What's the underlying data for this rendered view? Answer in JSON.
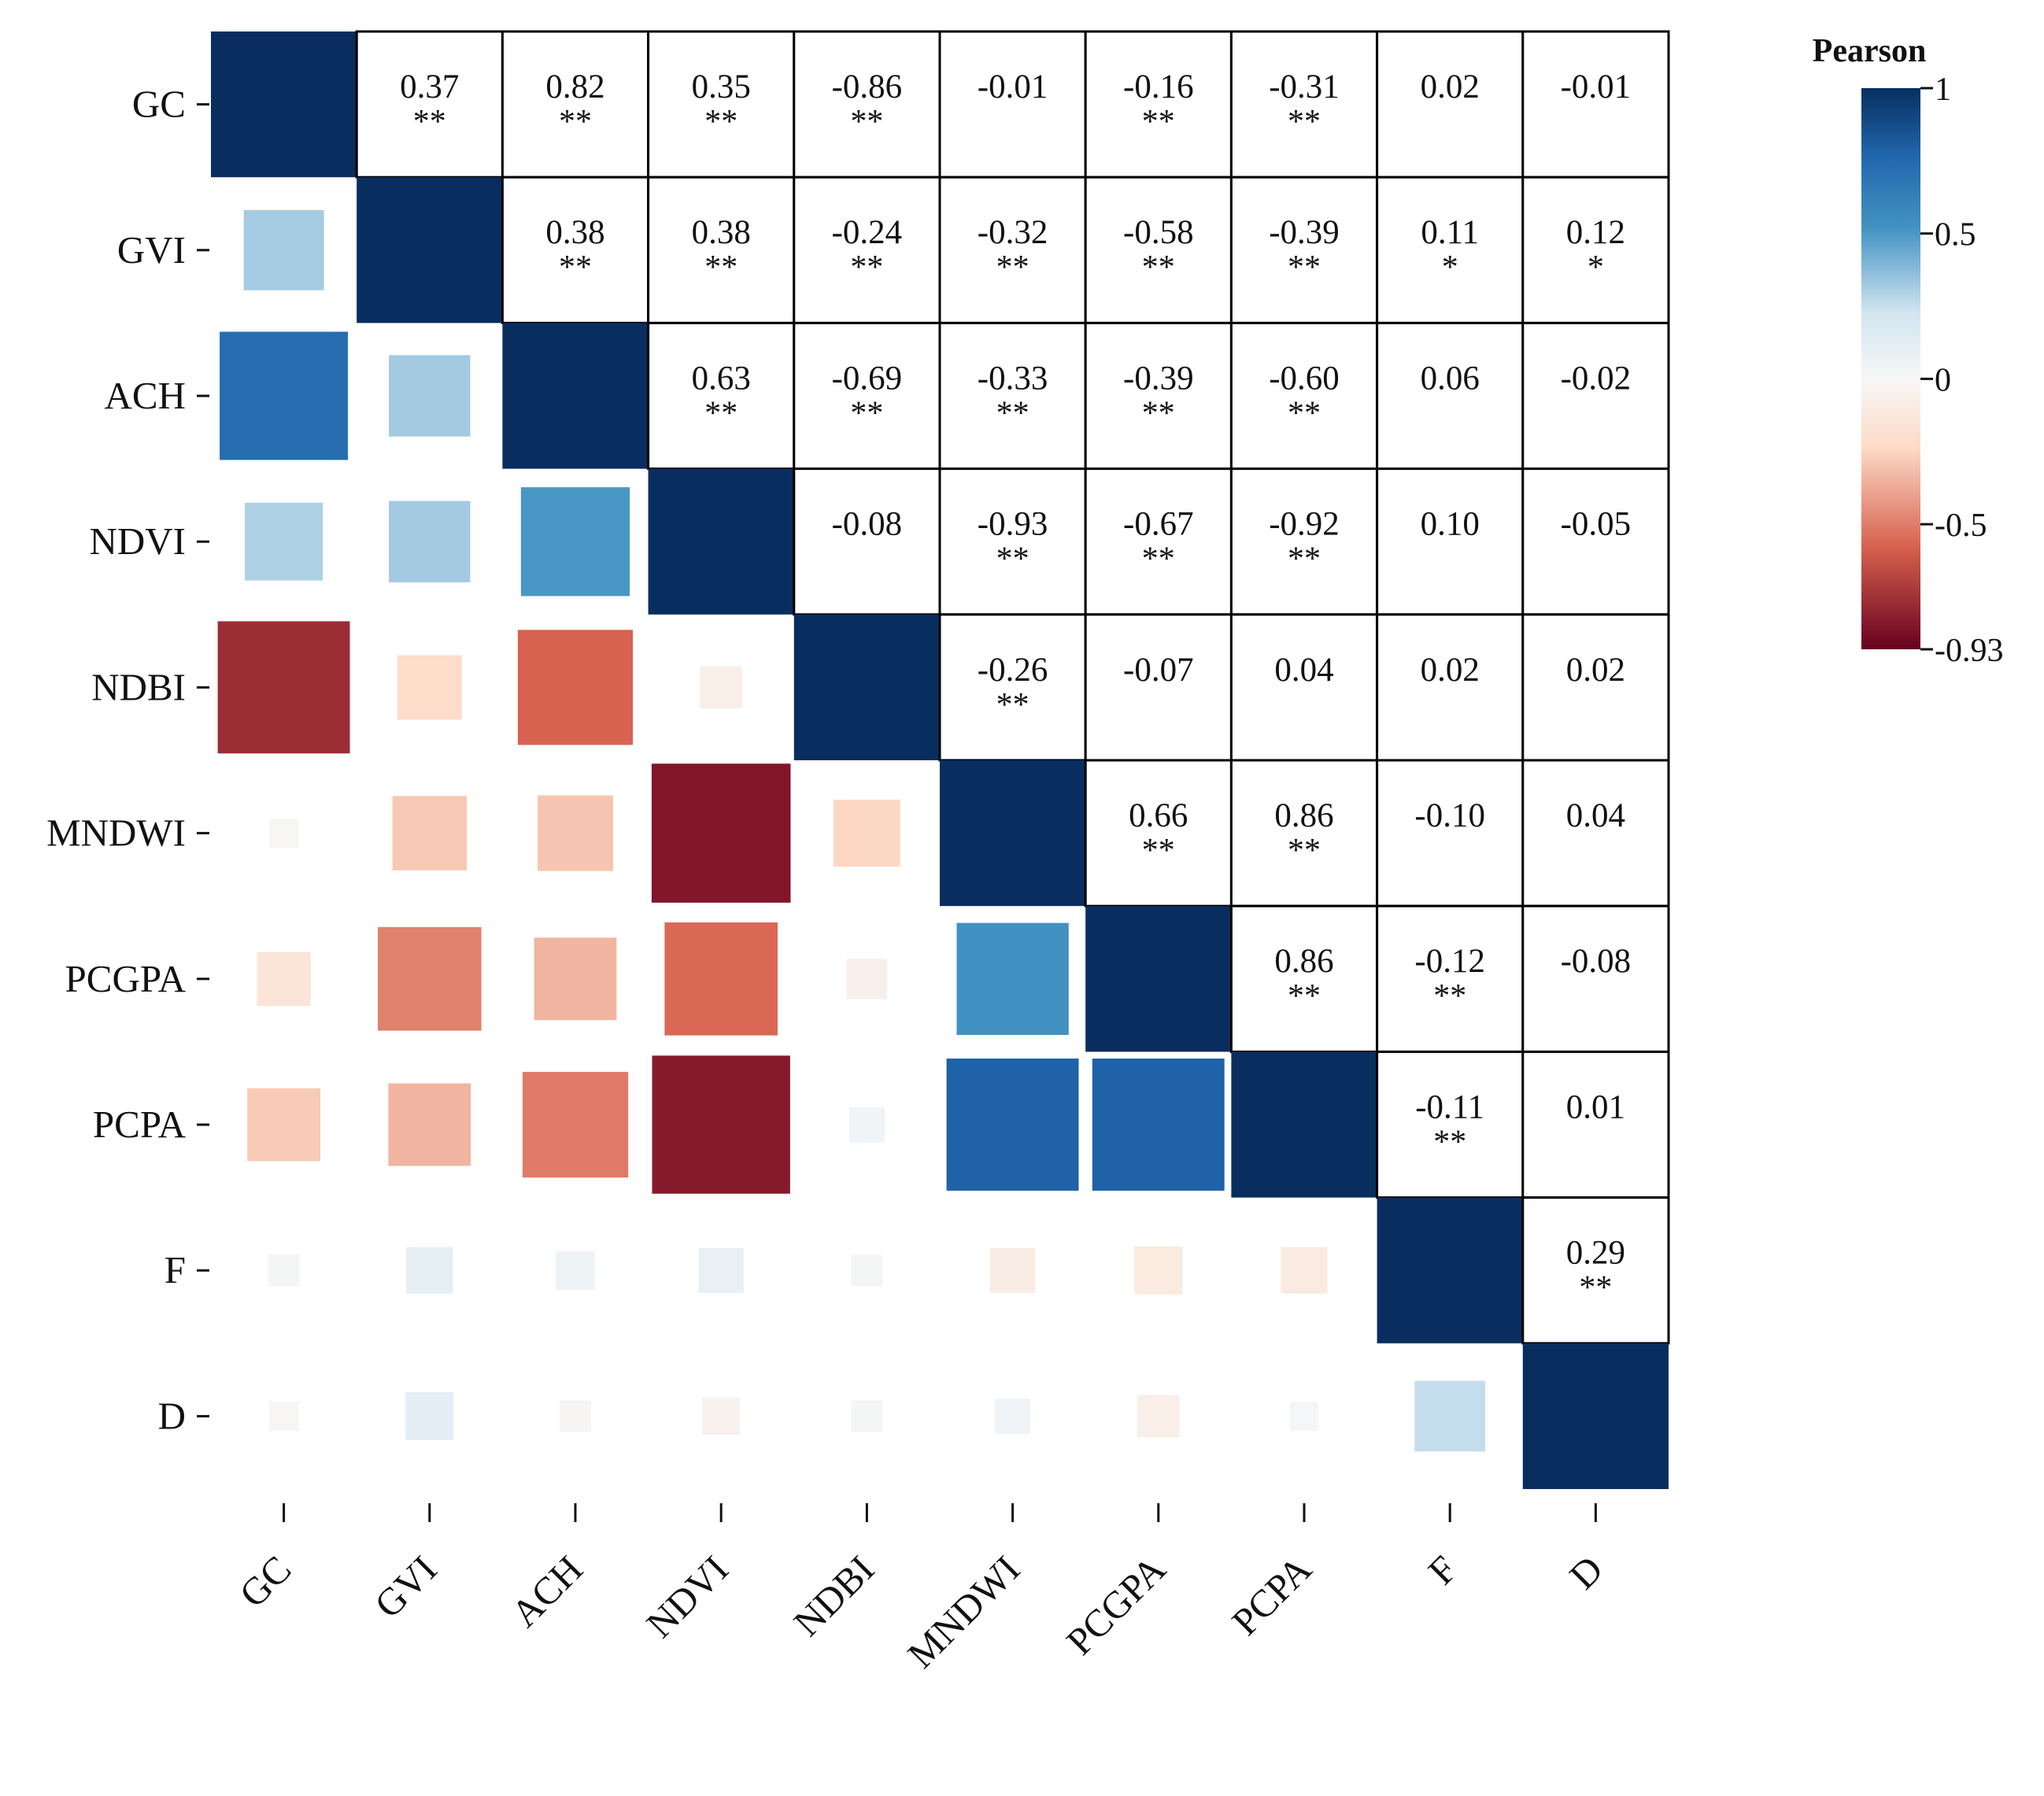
{
  "chart_data": {
    "type": "heatmap",
    "variables": [
      "GC",
      "GVI",
      "ACH",
      "NDVI",
      "NDBI",
      "MNDWI",
      "PCGPA",
      "PCPA",
      "F",
      "D"
    ],
    "correlations": [
      [
        1,
        0.37,
        0.82,
        0.35,
        -0.86,
        -0.01,
        -0.16,
        -0.31,
        0.02,
        -0.01
      ],
      [
        0.37,
        1,
        0.38,
        0.38,
        -0.24,
        -0.32,
        -0.58,
        -0.39,
        0.11,
        0.12
      ],
      [
        0.82,
        0.38,
        1,
        0.63,
        -0.69,
        -0.33,
        -0.39,
        -0.6,
        0.06,
        -0.02
      ],
      [
        0.35,
        0.38,
        0.63,
        1,
        -0.08,
        -0.93,
        -0.67,
        -0.92,
        0.1,
        -0.05
      ],
      [
        -0.86,
        -0.24,
        -0.69,
        -0.08,
        1,
        -0.26,
        -0.07,
        0.04,
        0.02,
        0.02
      ],
      [
        -0.01,
        -0.32,
        -0.33,
        -0.93,
        -0.26,
        1,
        0.66,
        0.86,
        -0.1,
        0.04
      ],
      [
        -0.16,
        -0.58,
        -0.39,
        -0.67,
        -0.07,
        0.66,
        1,
        0.86,
        -0.12,
        -0.08
      ],
      [
        -0.31,
        -0.39,
        -0.6,
        -0.92,
        0.04,
        0.86,
        0.86,
        1,
        -0.11,
        0.01
      ],
      [
        0.02,
        0.11,
        0.06,
        0.1,
        0.02,
        -0.1,
        -0.12,
        -0.11,
        1,
        0.29
      ],
      [
        -0.01,
        0.12,
        -0.02,
        -0.05,
        0.02,
        0.04,
        -0.08,
        0.01,
        0.29,
        1
      ]
    ],
    "upper_labels": [
      [
        "",
        "0.37",
        "0.82",
        "0.35",
        "-0.86",
        "-0.01",
        "-0.16",
        "-0.31",
        "0.02",
        "-0.01"
      ],
      [
        "",
        "",
        "0.38",
        "0.38",
        "-0.24",
        "-0.32",
        "-0.58",
        "-0.39",
        "0.11",
        "0.12"
      ],
      [
        "",
        "",
        "",
        "0.63",
        "-0.69",
        "-0.33",
        "-0.39",
        "-0.60",
        "0.06",
        "-0.02"
      ],
      [
        "",
        "",
        "",
        "",
        "-0.08",
        "-0.93",
        "-0.67",
        "-0.92",
        "0.10",
        "-0.05"
      ],
      [
        "",
        "",
        "",
        "",
        "",
        "-0.26",
        "-0.07",
        "0.04",
        "0.02",
        "0.02"
      ],
      [
        "",
        "",
        "",
        "",
        "",
        "",
        "0.66",
        "0.86",
        "-0.10",
        "0.04"
      ],
      [
        "",
        "",
        "",
        "",
        "",
        "",
        "",
        "0.86",
        "-0.12",
        "-0.08"
      ],
      [
        "",
        "",
        "",
        "",
        "",
        "",
        "",
        "",
        "-0.11",
        "0.01"
      ],
      [
        "",
        "",
        "",
        "",
        "",
        "",
        "",
        "",
        "",
        "0.29"
      ],
      [
        "",
        "",
        "",
        "",
        "",
        "",
        "",
        "",
        "",
        ""
      ]
    ],
    "significance": [
      [
        "",
        "**",
        "**",
        "**",
        "**",
        "",
        "**",
        "**",
        "",
        ""
      ],
      [
        "",
        "",
        "**",
        "**",
        "**",
        "**",
        "**",
        "**",
        "*",
        "*"
      ],
      [
        "",
        "",
        "",
        "**",
        "**",
        "**",
        "**",
        "**",
        "",
        ""
      ],
      [
        "",
        "",
        "",
        "",
        "",
        "**",
        "**",
        "**",
        "",
        ""
      ],
      [
        "",
        "",
        "",
        "",
        "",
        "**",
        "",
        "",
        "",
        ""
      ],
      [
        "",
        "",
        "",
        "",
        "",
        "",
        "**",
        "**",
        "",
        ""
      ],
      [
        "",
        "",
        "",
        "",
        "",
        "",
        "",
        "**",
        "**",
        ""
      ],
      [
        "",
        "",
        "",
        "",
        "",
        "",
        "",
        "",
        "**",
        ""
      ],
      [
        "",
        "",
        "",
        "",
        "",
        "",
        "",
        "",
        "",
        "**"
      ],
      [
        "",
        "",
        "",
        "",
        "",
        "",
        "",
        "",
        "",
        ""
      ]
    ],
    "lower_triangle": "colored squares sized by absolute correlation",
    "upper_triangle": "coefficient text with significance stars",
    "legend": {
      "title": "Pearson",
      "min": -0.93,
      "max": 1,
      "tick_values": [
        1,
        0.5,
        0,
        -0.5,
        -0.93
      ],
      "tick_labels": [
        "1",
        "0.5",
        "0",
        "-0.5",
        "-0.93"
      ],
      "position": "top-right"
    }
  },
  "colors": {
    "scale_min": "#67001f",
    "scale_lower_mid": "#d6604d",
    "scale_lower_light": "#fddbc7",
    "scale_zero": "#f7f7f7",
    "scale_upper_light": "#d1e5f0",
    "scale_upper_mid": "#4393c3",
    "scale_upper_dark": "#2166ac",
    "scale_max": "#053061",
    "diagonal": "#0a2d5f",
    "grid": "#000000"
  }
}
